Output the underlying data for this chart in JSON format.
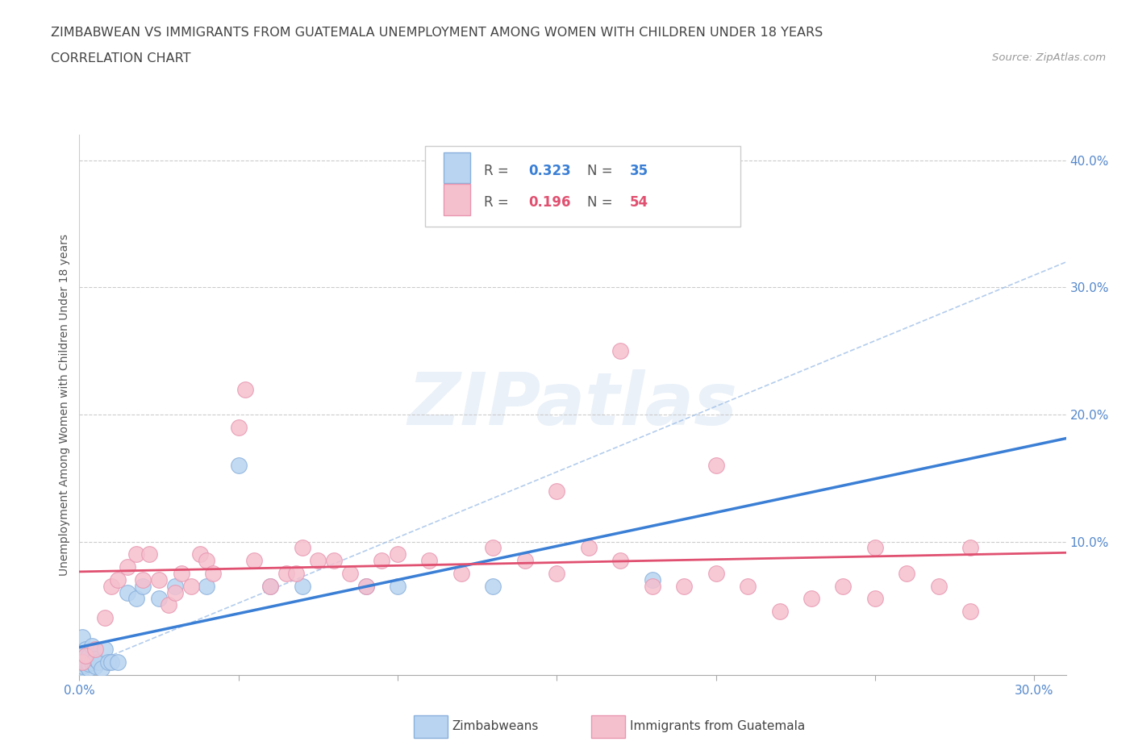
{
  "title": "ZIMBABWEAN VS IMMIGRANTS FROM GUATEMALA UNEMPLOYMENT AMONG WOMEN WITH CHILDREN UNDER 18 YEARS",
  "subtitle": "CORRELATION CHART",
  "source": "Source: ZipAtlas.com",
  "ylabel": "Unemployment Among Women with Children Under 18 years",
  "xlim": [
    0.0,
    0.31
  ],
  "ylim": [
    -0.005,
    0.42
  ],
  "xticks": [
    0.0,
    0.05,
    0.1,
    0.15,
    0.2,
    0.25,
    0.3
  ],
  "xticklabels": [
    "0.0%",
    "",
    "",
    "",
    "",
    "",
    "30.0%"
  ],
  "yticks": [
    0.0,
    0.1,
    0.2,
    0.3,
    0.4
  ],
  "yticklabels": [
    "",
    "10.0%",
    "20.0%",
    "30.0%",
    "40.0%"
  ],
  "zimbabwe_color": "#b8d4f0",
  "zimbabwe_edge": "#8ab0dc",
  "guatemala_color": "#f5c0ce",
  "guatemala_edge": "#e896b0",
  "trendline_blue": "#3a7fd5",
  "trendline_pink": "#e05070",
  "dashed_color": "#a0c0e8",
  "legend_r1": "R = 0.323",
  "legend_n1": "N = 35",
  "legend_r2": "R = 0.196",
  "legend_n2": "N = 54",
  "watermark": "ZIPatlas",
  "zimbabwe_x": [
    0.001,
    0.001,
    0.001,
    0.001,
    0.001,
    0.001,
    0.002,
    0.002,
    0.002,
    0.003,
    0.003,
    0.003,
    0.004,
    0.004,
    0.005,
    0.005,
    0.006,
    0.007,
    0.008,
    0.009,
    0.01,
    0.012,
    0.015,
    0.018,
    0.02,
    0.025,
    0.03,
    0.04,
    0.05,
    0.06,
    0.07,
    0.09,
    0.1,
    0.13,
    0.18
  ],
  "zimbabwe_y": [
    0.0,
    0.002,
    0.005,
    0.008,
    0.012,
    0.025,
    0.003,
    0.006,
    0.015,
    0.0,
    0.004,
    0.01,
    0.005,
    0.018,
    0.002,
    0.008,
    0.005,
    0.0,
    0.015,
    0.005,
    0.005,
    0.005,
    0.06,
    0.055,
    0.065,
    0.055,
    0.065,
    0.065,
    0.16,
    0.065,
    0.065,
    0.065,
    0.065,
    0.065,
    0.07
  ],
  "guatemala_x": [
    0.001,
    0.002,
    0.005,
    0.008,
    0.01,
    0.012,
    0.015,
    0.018,
    0.02,
    0.022,
    0.025,
    0.028,
    0.03,
    0.032,
    0.035,
    0.038,
    0.04,
    0.042,
    0.05,
    0.052,
    0.055,
    0.06,
    0.065,
    0.068,
    0.07,
    0.075,
    0.08,
    0.085,
    0.09,
    0.095,
    0.1,
    0.11,
    0.12,
    0.13,
    0.14,
    0.15,
    0.16,
    0.17,
    0.18,
    0.19,
    0.2,
    0.21,
    0.22,
    0.23,
    0.24,
    0.25,
    0.26,
    0.27,
    0.28,
    0.15,
    0.17,
    0.2,
    0.25,
    0.28
  ],
  "guatemala_y": [
    0.005,
    0.01,
    0.015,
    0.04,
    0.065,
    0.07,
    0.08,
    0.09,
    0.07,
    0.09,
    0.07,
    0.05,
    0.06,
    0.075,
    0.065,
    0.09,
    0.085,
    0.075,
    0.19,
    0.22,
    0.085,
    0.065,
    0.075,
    0.075,
    0.095,
    0.085,
    0.085,
    0.075,
    0.065,
    0.085,
    0.09,
    0.085,
    0.075,
    0.095,
    0.085,
    0.075,
    0.095,
    0.085,
    0.065,
    0.065,
    0.075,
    0.065,
    0.045,
    0.055,
    0.065,
    0.055,
    0.075,
    0.065,
    0.045,
    0.14,
    0.25,
    0.16,
    0.095,
    0.095
  ]
}
